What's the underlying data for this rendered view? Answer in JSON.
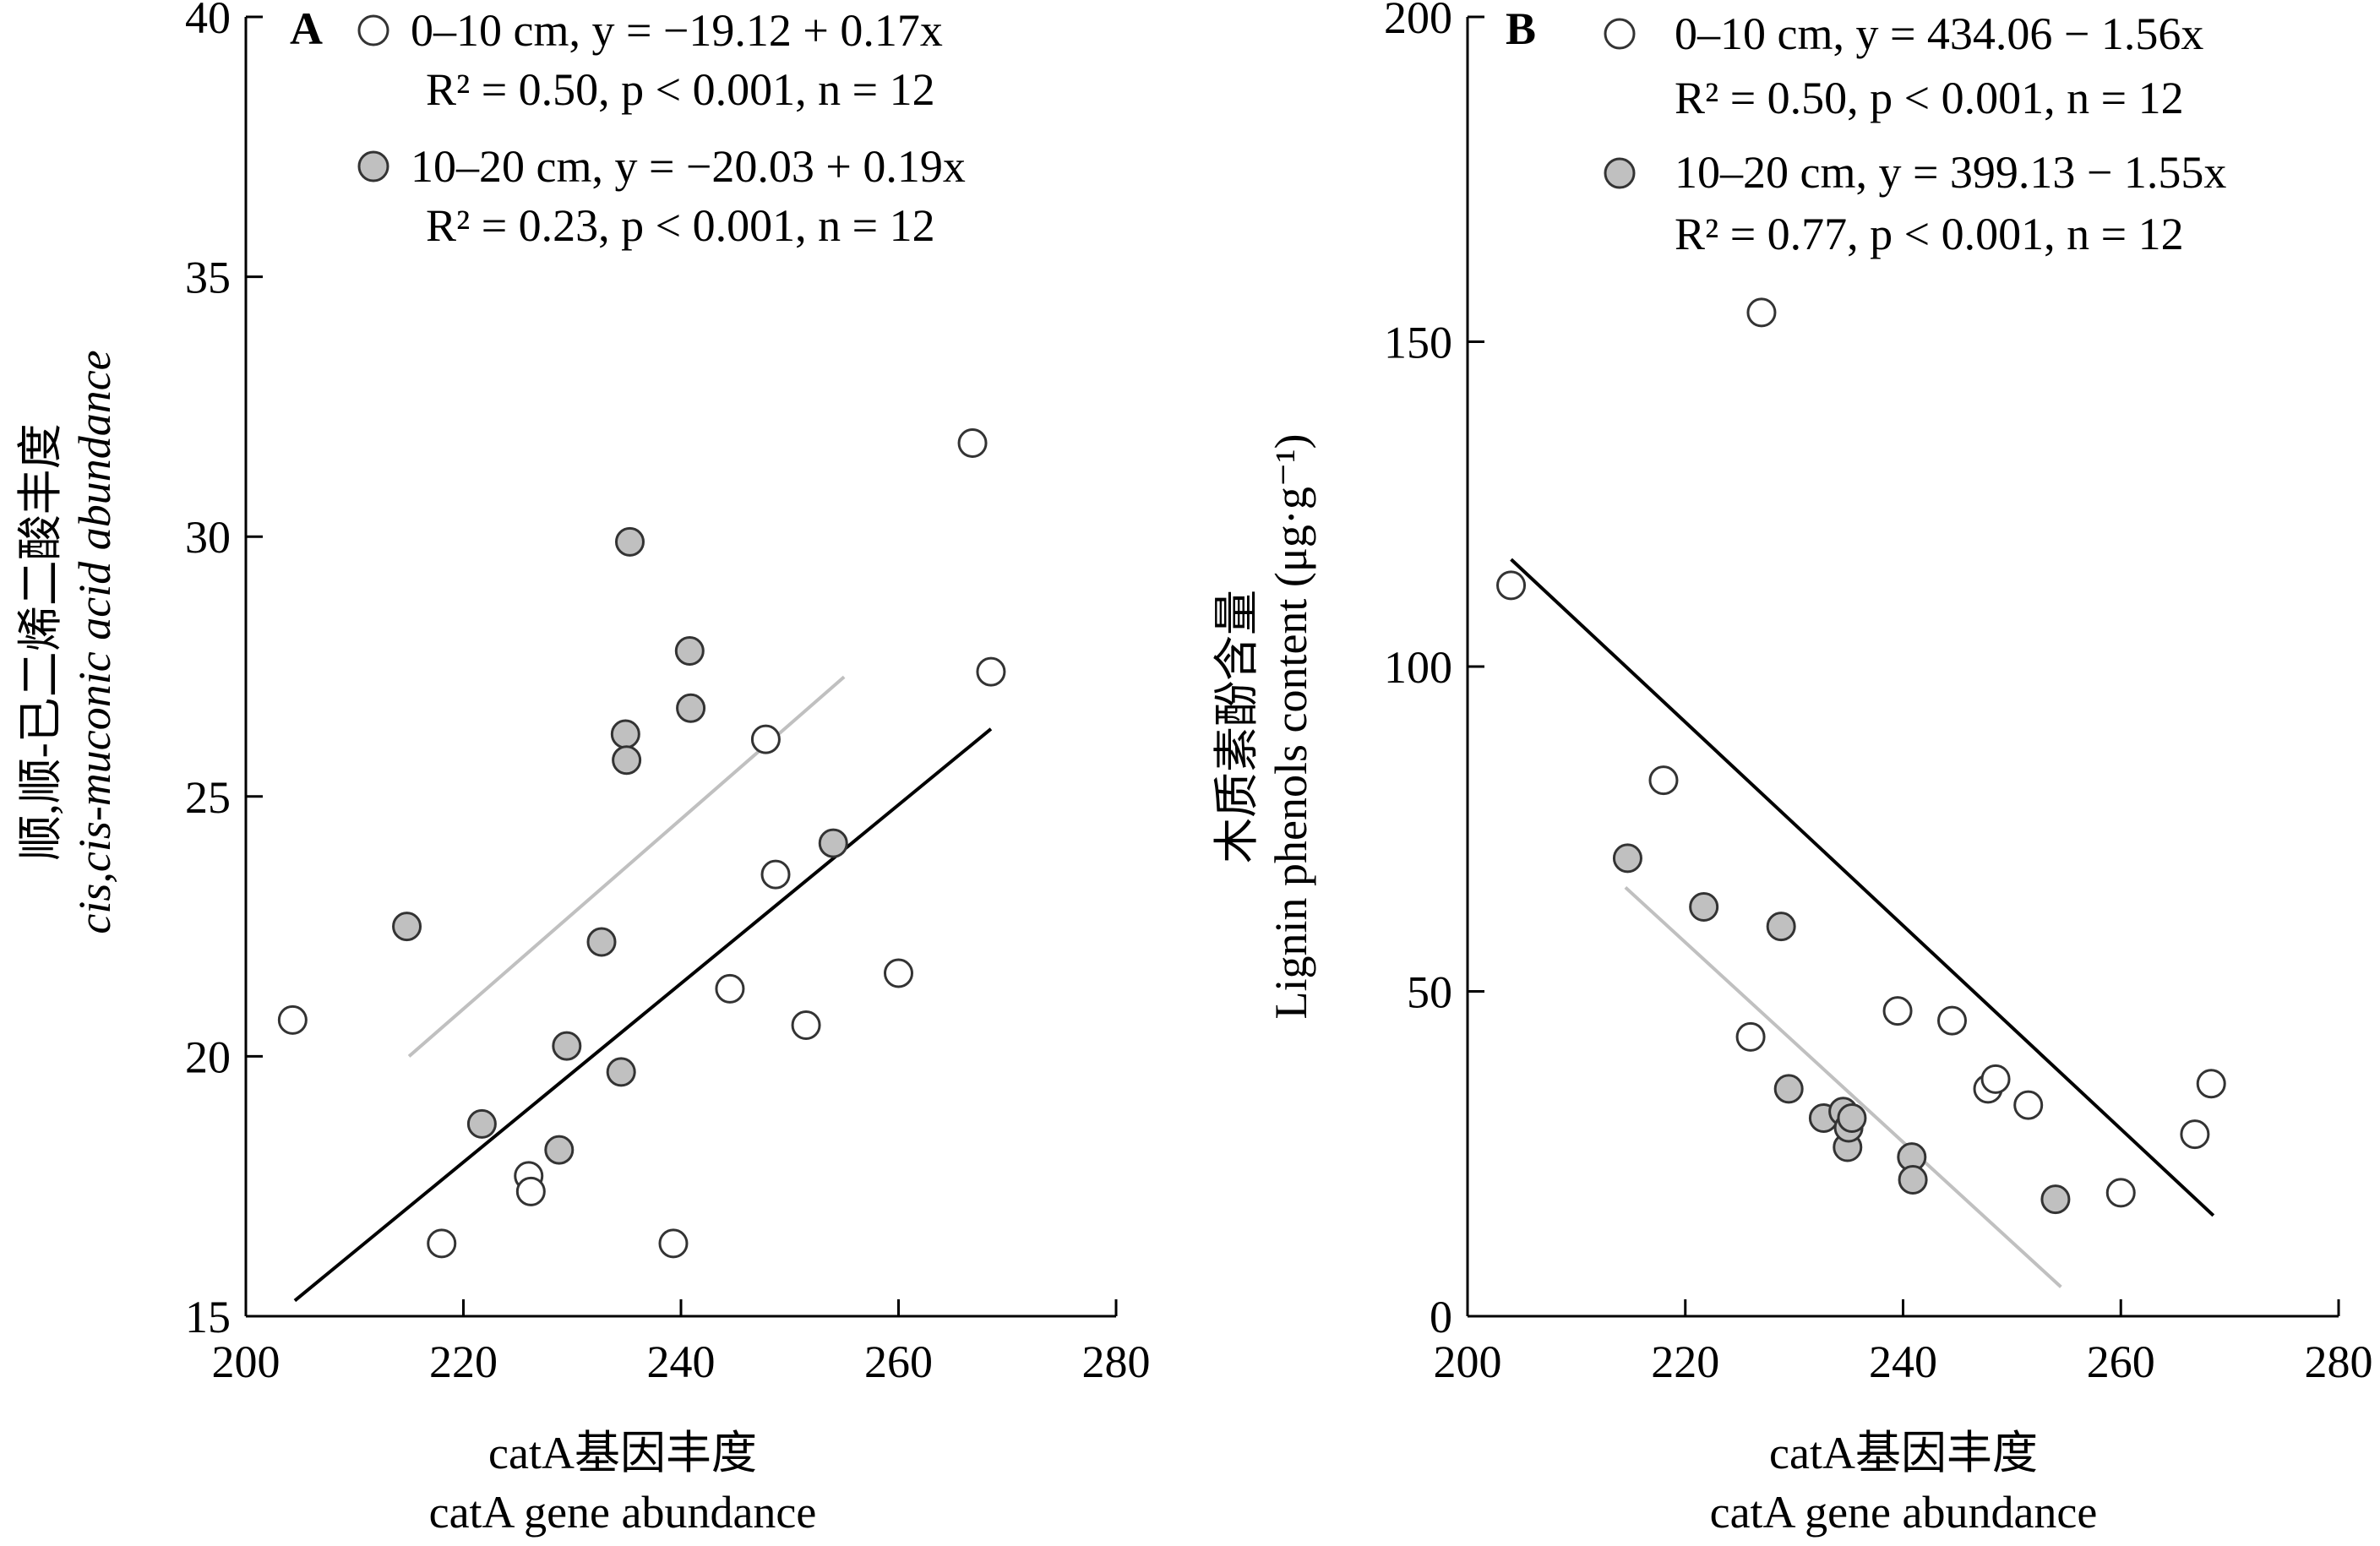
{
  "figure": {
    "colors": {
      "axis": "#000000",
      "open_marker_fill": "#ffffff",
      "filled_marker_fill": "#c0c0c0",
      "marker_stroke": "#333333",
      "fit_line_0_10": "#000000",
      "fit_line_10_20": "#c0c0c0"
    }
  },
  "chart_data": [
    {
      "type": "scatter",
      "panel": "A",
      "xlabel_lines": [
        "catA基因丰度",
        "catA gene abundance"
      ],
      "ylabel_lines": [
        "顺,顺-已二烯二酸丰度",
        "cis,cis-muconic acid abundance"
      ],
      "xlim": [
        200,
        280
      ],
      "ylim": [
        15,
        40
      ],
      "x_ticks": [
        200,
        220,
        240,
        260,
        280
      ],
      "y_ticks": [
        15,
        20,
        25,
        30,
        35,
        40
      ],
      "legend_position": "top-left",
      "series": [
        {
          "name": "0–10 cm",
          "legend_line1": "0–10 cm, y = −19.12 + 0.17x",
          "legend_line2": "R² = 0.50, p < 0.001, n = 12",
          "marker": "open-circle",
          "points": [
            [
              204.3,
              20.7
            ],
            [
              218.0,
              16.4
            ],
            [
              226.0,
              17.7
            ],
            [
              226.2,
              17.4
            ],
            [
              239.3,
              16.4
            ],
            [
              244.5,
              21.3
            ],
            [
              247.8,
              26.1
            ],
            [
              248.7,
              23.5
            ],
            [
              251.5,
              20.6
            ],
            [
              260.0,
              21.6
            ],
            [
              266.8,
              31.8
            ],
            [
              268.5,
              27.4
            ]
          ],
          "fit_line": [
            [
              204.5,
              15.3
            ],
            [
              268.5,
              26.3
            ]
          ],
          "fit_color": "#000000"
        },
        {
          "name": "10–20 cm",
          "legend_line1": "10–20 cm, y = −20.03 + 0.19x",
          "legend_line2": "R² = 0.23, p < 0.001, n = 12",
          "marker": "filled-circle",
          "points": [
            [
              214.8,
              22.5
            ],
            [
              221.7,
              18.7
            ],
            [
              228.8,
              18.2
            ],
            [
              229.5,
              20.2
            ],
            [
              232.7,
              22.2
            ],
            [
              234.5,
              19.7
            ],
            [
              234.9,
              26.2
            ],
            [
              235.0,
              25.7
            ],
            [
              235.3,
              29.9
            ],
            [
              240.8,
              27.8
            ],
            [
              240.9,
              26.7
            ],
            [
              254.0,
              24.1
            ]
          ],
          "fit_line": [
            [
              215.0,
              20.0
            ],
            [
              255.0,
              27.3
            ]
          ],
          "fit_color": "#c0c0c0"
        }
      ]
    },
    {
      "type": "scatter",
      "panel": "B",
      "xlabel_lines": [
        "catA基因丰度",
        "catA gene abundance"
      ],
      "ylabel_lines": [
        "木质素酚含量",
        "Lignin phenols content (μg·g⁻¹)"
      ],
      "xlim": [
        200,
        280
      ],
      "ylim": [
        0,
        200
      ],
      "x_ticks": [
        200,
        220,
        240,
        260,
        280
      ],
      "y_ticks": [
        0,
        50,
        100,
        150,
        200
      ],
      "legend_position": "top-left",
      "series": [
        {
          "name": "0–10 cm",
          "legend_line1": "0–10 cm, y = 434.06 − 1.56x",
          "legend_line2": "R² = 0.50, p < 0.001, n = 12",
          "marker": "open-circle",
          "points": [
            [
              204.0,
              112.5
            ],
            [
              218.0,
              82.5
            ],
            [
              226.0,
              43.0
            ],
            [
              227.0,
              154.5
            ],
            [
              239.5,
              47.0
            ],
            [
              244.5,
              45.5
            ],
            [
              247.8,
              35.0
            ],
            [
              248.5,
              36.5
            ],
            [
              251.5,
              32.5
            ],
            [
              260.0,
              19.0
            ],
            [
              266.8,
              28.0
            ],
            [
              268.3,
              35.8
            ]
          ],
          "fit_line": [
            [
              204.0,
              116.5
            ],
            [
              268.5,
              15.5
            ]
          ],
          "fit_color": "#000000"
        },
        {
          "name": "10–20 cm",
          "legend_line1": "10–20 cm, y = 399.13 − 1.55x",
          "legend_line2": "R² = 0.77, p < 0.001, n = 12",
          "marker": "filled-circle",
          "points": [
            [
              214.7,
              70.5
            ],
            [
              221.7,
              63.0
            ],
            [
              228.8,
              60.0
            ],
            [
              229.5,
              35.0
            ],
            [
              232.7,
              30.5
            ],
            [
              234.5,
              31.5
            ],
            [
              234.9,
              26.0
            ],
            [
              235.0,
              29.0
            ],
            [
              235.3,
              30.5
            ],
            [
              240.8,
              24.5
            ],
            [
              240.9,
              21.0
            ],
            [
              254.0,
              18.0
            ]
          ],
          "fit_line": [
            [
              214.5,
              66.0
            ],
            [
              254.5,
              4.5
            ]
          ],
          "fit_color": "#c0c0c0"
        }
      ]
    }
  ]
}
